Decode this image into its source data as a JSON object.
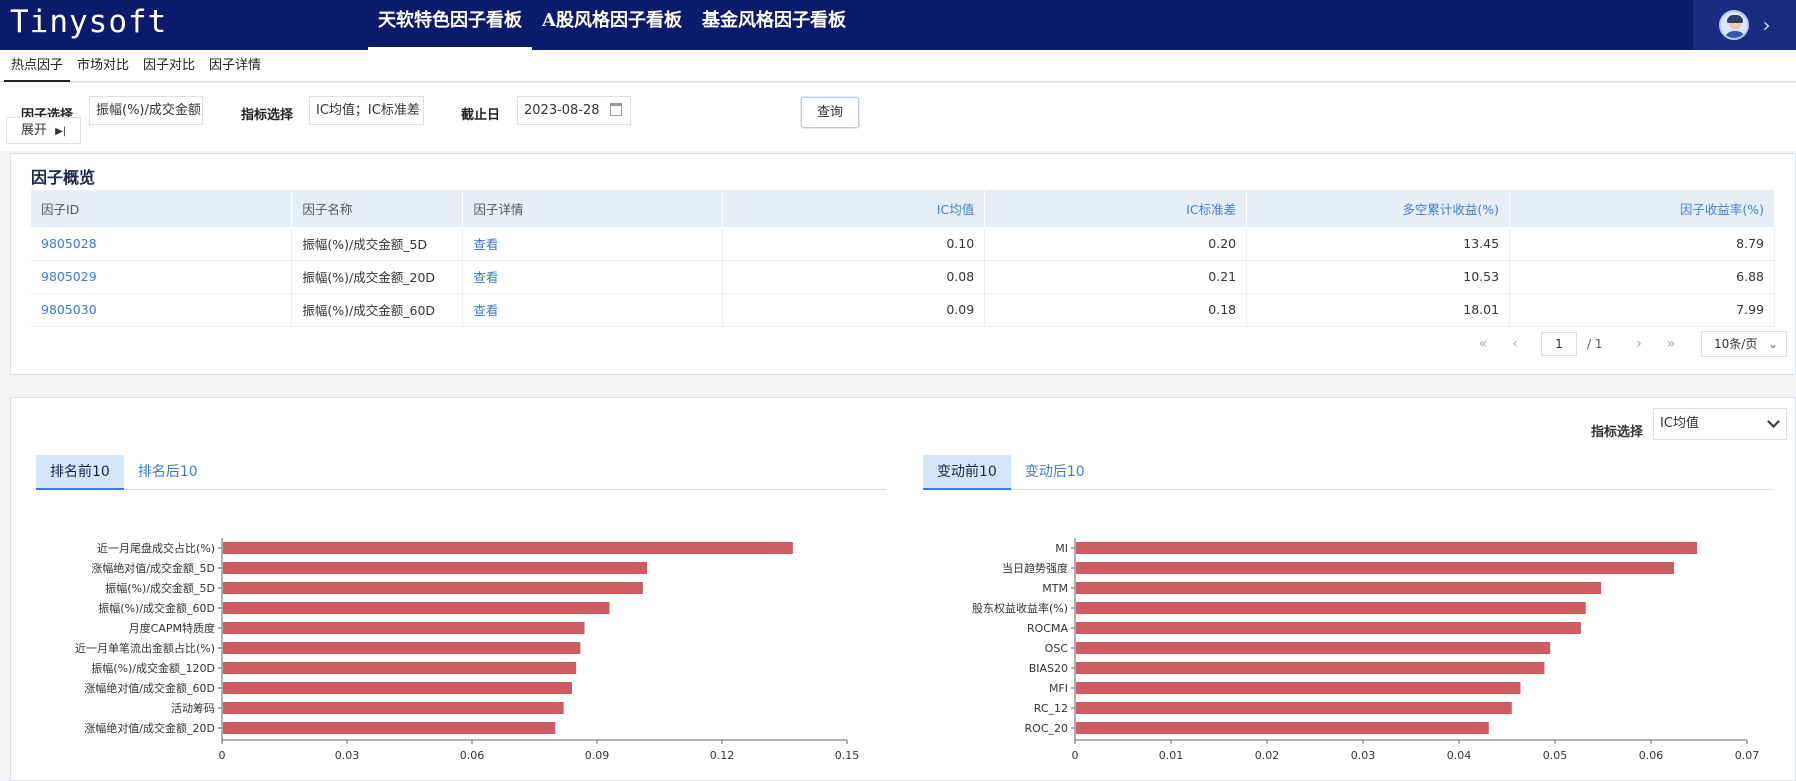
{
  "app": {
    "logo": "Tinysoft",
    "nav": [
      "天软特色因子看板",
      "A股风格因子看板",
      "基金风格因子看板"
    ]
  },
  "subtabs": [
    "热点因子",
    "市场对比",
    "因子对比",
    "因子详情"
  ],
  "filter": {
    "factor_label": "因子选择",
    "factor_value": "振幅(%)/成交金额",
    "metric_label": "指标选择",
    "metric_value": "IC均值；IC标准差",
    "date_label": "截止日",
    "date_value": "2023-08-28",
    "expand_label": "展开",
    "query_label": "查询"
  },
  "overview": {
    "title": "因子概览",
    "columns": [
      "因子ID",
      "因子名称",
      "因子详情",
      "IC均值",
      "IC标准差",
      "多空累计收益(%)",
      "因子收益率(%)"
    ],
    "rows": [
      {
        "id": "9805028",
        "name": "振幅(%)/成交金额_5D",
        "detail": "查看",
        "ic_mean": "0.10",
        "ic_std": "0.20",
        "ls_return": "13.45",
        "factor_return": "8.79"
      },
      {
        "id": "9805029",
        "name": "振幅(%)/成交金额_20D",
        "detail": "查看",
        "ic_mean": "0.08",
        "ic_std": "0.21",
        "ls_return": "10.53",
        "factor_return": "6.88"
      },
      {
        "id": "9805030",
        "name": "振幅(%)/成交金额_60D",
        "detail": "查看",
        "ic_mean": "0.09",
        "ic_std": "0.18",
        "ls_return": "18.01",
        "factor_return": "7.99"
      }
    ],
    "pager": {
      "first": "«",
      "prev": "‹",
      "page": "1",
      "total": "/ 1",
      "next": "›",
      "last": "»",
      "size": "10条/页"
    }
  },
  "ranking": {
    "metric_label": "指标选择",
    "metric_value": "IC均值",
    "left_tabs": [
      "排名前10",
      "排名后10"
    ],
    "right_tabs": [
      "变动前10",
      "变动后10"
    ]
  },
  "colors": {
    "bar": "#cd5c63",
    "nav_bg": "#0b1b6b",
    "link": "#3b7bd1"
  },
  "chart_data": [
    {
      "type": "bar",
      "orientation": "horizontal",
      "categories": [
        "近一月尾盘成交占比(%)",
        "涨幅绝对值/成交金额_5D",
        "振幅(%)/成交金额_5D",
        "振幅(%)/成交金额_60D",
        "月度CAPM特质度",
        "近一月单笔流出金额占比(%)",
        "振幅(%)/成交金额_120D",
        "涨幅绝对值/成交金额_60D",
        "活动筹码",
        "涨幅绝对值/成交金额_20D"
      ],
      "values": [
        0.137,
        0.102,
        0.101,
        0.093,
        0.087,
        0.086,
        0.085,
        0.084,
        0.082,
        0.08
      ],
      "xlim": [
        0,
        0.15
      ],
      "xticks": [
        "0",
        "0.03",
        "0.06",
        "0.09",
        "0.12",
        "0.15"
      ]
    },
    {
      "type": "bar",
      "orientation": "horizontal",
      "categories": [
        "MI",
        "当日趋势强度",
        "MTM",
        "股东权益收益率(%)",
        "ROCMA",
        "OSC",
        "BIAS20",
        "MFI",
        "RC_12",
        "ROC_20"
      ],
      "values": [
        0.0648,
        0.0624,
        0.0548,
        0.0532,
        0.0527,
        0.0495,
        0.0489,
        0.0464,
        0.0455,
        0.0431
      ],
      "xlim": [
        0,
        0.07
      ],
      "xticks": [
        "0",
        "0.01",
        "0.02",
        "0.03",
        "0.04",
        "0.05",
        "0.06",
        "0.07"
      ]
    }
  ]
}
